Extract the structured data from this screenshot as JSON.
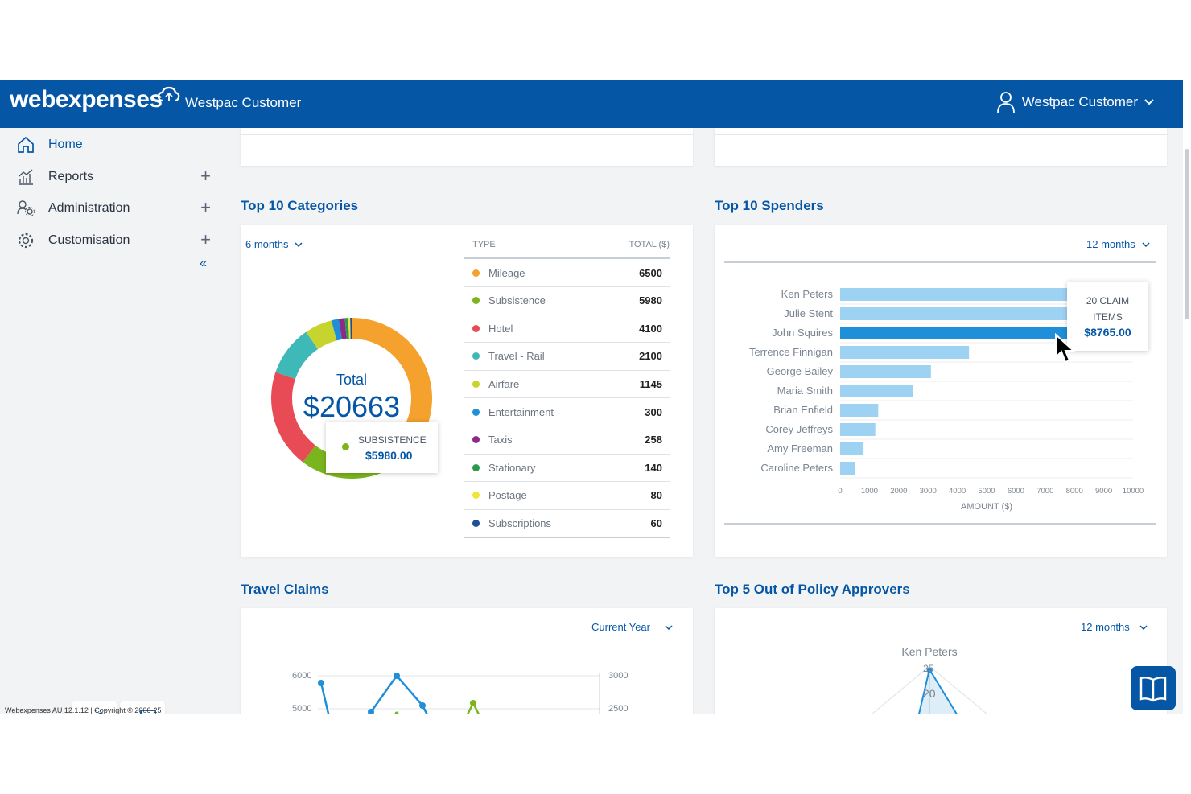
{
  "header": {
    "logo": "webexpenses",
    "org": "Westpac Customer",
    "user": "Westpac Customer"
  },
  "sidebar": {
    "items": [
      {
        "label": "Home",
        "icon": "home-icon"
      },
      {
        "label": "Reports",
        "icon": "bar-chart-icon"
      },
      {
        "label": "Administration",
        "icon": "users-gear-icon"
      },
      {
        "label": "Customisation",
        "icon": "gear-icon"
      }
    ],
    "footer": "Webexpenses AU 12.1.12 | Copyright © 2006-25"
  },
  "categories": {
    "title": "Top 10 Categories",
    "period": "6 months",
    "col_type": "TYPE",
    "col_total": "TOTAL ($)",
    "total_label": "Total",
    "total_value": "$20663",
    "tooltip_label": "SUBSISTENCE",
    "tooltip_value": "$5980.00",
    "rows": [
      {
        "label": "Mileage",
        "value": "6500",
        "color": "#f4a22d"
      },
      {
        "label": "Subsistence",
        "value": "5980",
        "color": "#7ab51d"
      },
      {
        "label": "Hotel",
        "value": "4100",
        "color": "#e84b55"
      },
      {
        "label": "Travel - Rail",
        "value": "2100",
        "color": "#3fb8b8"
      },
      {
        "label": "Airfare",
        "value": "1145",
        "color": "#c8d42e"
      },
      {
        "label": "Entertainment",
        "value": "300",
        "color": "#1e90d8"
      },
      {
        "label": "Taxis",
        "value": "258",
        "color": "#8a2a8a"
      },
      {
        "label": "Stationary",
        "value": "140",
        "color": "#2a9a4a"
      },
      {
        "label": "Postage",
        "value": "80",
        "color": "#f2e43a"
      },
      {
        "label": "Subscriptions",
        "value": "60",
        "color": "#1f4e9c"
      }
    ]
  },
  "spenders": {
    "title": "Top 10 Spenders",
    "period": "12 months",
    "xlabel": "AMOUNT ($)",
    "tooltip_line1": "20 CLAIM",
    "tooltip_line2": "ITEMS",
    "tooltip_value": "$8765.00",
    "chart_data": {
      "type": "bar",
      "orientation": "horizontal",
      "categories": [
        "Ken Peters",
        "Julie Stent",
        "John Squires",
        "Terrence Finnigan",
        "George Bailey",
        "Maria Smith",
        "Brian Enfield",
        "Corey Jeffreys",
        "Amy Freeman",
        "Caroline Peters"
      ],
      "values": [
        9800,
        9200,
        8765,
        4400,
        3100,
        2500,
        1300,
        1200,
        800,
        500
      ],
      "xlabel": "AMOUNT ($)",
      "xlim": [
        0,
        10000
      ],
      "ticks": [
        "0",
        "1000",
        "2000",
        "3000",
        "4000",
        "5000",
        "6000",
        "7000",
        "8000",
        "9000",
        "10000"
      ],
      "highlight": "John Squires"
    }
  },
  "travel": {
    "title": "Travel Claims",
    "period": "Current Year",
    "left_ticks": [
      "6000",
      "5000"
    ],
    "right_ticks": [
      "3000",
      "2500"
    ]
  },
  "approvers": {
    "title": "Top 5 Out of Policy Approvers",
    "period": "12 months",
    "top_label": "Ken Peters",
    "ring_labels": [
      "25",
      "20"
    ]
  }
}
